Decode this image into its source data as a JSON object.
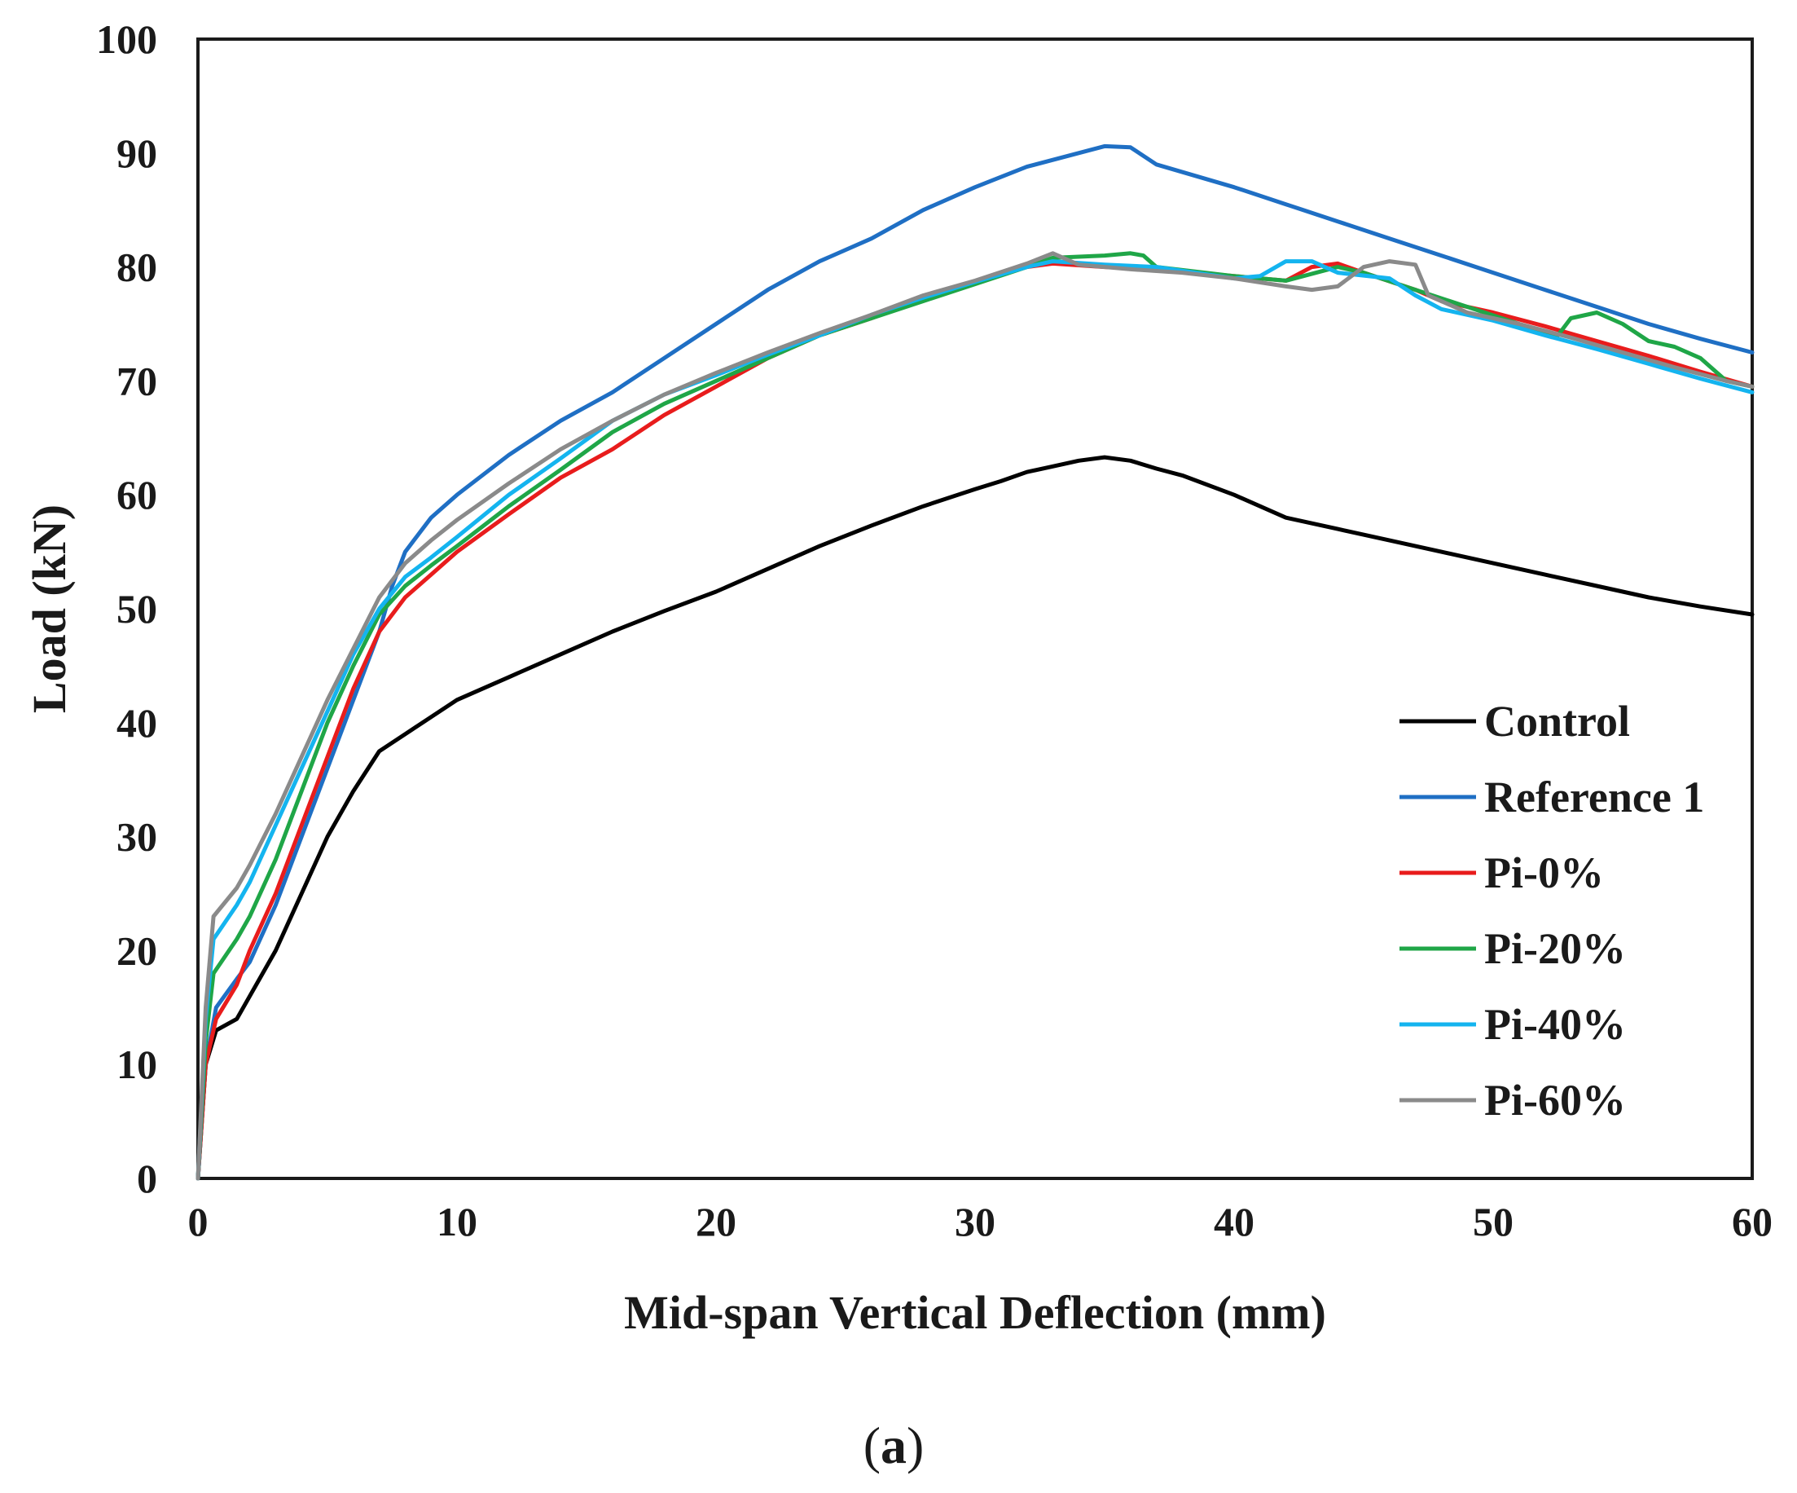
{
  "chart_data": {
    "type": "line",
    "title": "",
    "xlabel": "Mid-span Vertical Deflection (mm)",
    "ylabel": "Load (kN)",
    "xlim": [
      0,
      60
    ],
    "ylim": [
      0,
      100
    ],
    "xticks": [
      0,
      10,
      20,
      30,
      40,
      50,
      60
    ],
    "yticks": [
      0,
      10,
      20,
      30,
      40,
      50,
      60,
      70,
      80,
      90,
      100
    ],
    "grid": false,
    "legend_position": "bottom-right",
    "caption_prefix": "(",
    "caption_letter": "a",
    "caption_suffix": ")",
    "series": [
      {
        "name": "Control",
        "color": "#000000",
        "points": [
          [
            0,
            0
          ],
          [
            0.3,
            10
          ],
          [
            0.7,
            13
          ],
          [
            1.5,
            14
          ],
          [
            2,
            16
          ],
          [
            3,
            20
          ],
          [
            4,
            25
          ],
          [
            5,
            30
          ],
          [
            6,
            34
          ],
          [
            7,
            37.5
          ],
          [
            8,
            39
          ],
          [
            9,
            40.5
          ],
          [
            10,
            42
          ],
          [
            12,
            44
          ],
          [
            14,
            46
          ],
          [
            16,
            48
          ],
          [
            18,
            49.8
          ],
          [
            20,
            51.5
          ],
          [
            22,
            53.5
          ],
          [
            24,
            55.5
          ],
          [
            26,
            57.3
          ],
          [
            28,
            59
          ],
          [
            30,
            60.5
          ],
          [
            31,
            61.2
          ],
          [
            32,
            62
          ],
          [
            33,
            62.5
          ],
          [
            34,
            63
          ],
          [
            35,
            63.3
          ],
          [
            36,
            63
          ],
          [
            37,
            62.3
          ],
          [
            38,
            61.7
          ],
          [
            40,
            60
          ],
          [
            42,
            58
          ],
          [
            44,
            57
          ],
          [
            46,
            56
          ],
          [
            48,
            55
          ],
          [
            50,
            54
          ],
          [
            52,
            53
          ],
          [
            54,
            52
          ],
          [
            56,
            51
          ],
          [
            58,
            50.2
          ],
          [
            60,
            49.5
          ]
        ]
      },
      {
        "name": "Reference 1",
        "color": "#1f6fc4",
        "points": [
          [
            0,
            0
          ],
          [
            0.3,
            10
          ],
          [
            0.7,
            15
          ],
          [
            1.5,
            17.5
          ],
          [
            2,
            19
          ],
          [
            3,
            24
          ],
          [
            4,
            30
          ],
          [
            5,
            36
          ],
          [
            6,
            42
          ],
          [
            7,
            48
          ],
          [
            7.5,
            52
          ],
          [
            8,
            55
          ],
          [
            9,
            58
          ],
          [
            10,
            60
          ],
          [
            12,
            63.5
          ],
          [
            14,
            66.5
          ],
          [
            16,
            69
          ],
          [
            18,
            72
          ],
          [
            20,
            75
          ],
          [
            22,
            78
          ],
          [
            24,
            80.5
          ],
          [
            26,
            82.5
          ],
          [
            28,
            85
          ],
          [
            30,
            87
          ],
          [
            32,
            88.8
          ],
          [
            34,
            90
          ],
          [
            35,
            90.6
          ],
          [
            36,
            90.5
          ],
          [
            37,
            89
          ],
          [
            40,
            87
          ],
          [
            42,
            85.5
          ],
          [
            44,
            84
          ],
          [
            46,
            82.5
          ],
          [
            48,
            81
          ],
          [
            50,
            79.5
          ],
          [
            52,
            78
          ],
          [
            54,
            76.5
          ],
          [
            56,
            75
          ],
          [
            58,
            73.7
          ],
          [
            60,
            72.5
          ]
        ]
      },
      {
        "name": "Pi-0%",
        "color": "#e81c1c",
        "points": [
          [
            0,
            0
          ],
          [
            0.3,
            10
          ],
          [
            0.7,
            14
          ],
          [
            1.5,
            17
          ],
          [
            2,
            20
          ],
          [
            3,
            25
          ],
          [
            4,
            31
          ],
          [
            5,
            37
          ],
          [
            6,
            43
          ],
          [
            7,
            48
          ],
          [
            8,
            51
          ],
          [
            9,
            53
          ],
          [
            10,
            55
          ],
          [
            12,
            58.3
          ],
          [
            14,
            61.5
          ],
          [
            16,
            64
          ],
          [
            18,
            67
          ],
          [
            20,
            69.5
          ],
          [
            22,
            72
          ],
          [
            24,
            74
          ],
          [
            26,
            75.5
          ],
          [
            28,
            77.2
          ],
          [
            30,
            78.7
          ],
          [
            32,
            80
          ],
          [
            33,
            80.3
          ],
          [
            35,
            80
          ],
          [
            37,
            79.8
          ],
          [
            40,
            79.2
          ],
          [
            42,
            78.8
          ],
          [
            43,
            80
          ],
          [
            44,
            80.3
          ],
          [
            45,
            79.5
          ],
          [
            47,
            78
          ],
          [
            48,
            77
          ],
          [
            50,
            76
          ],
          [
            52,
            74.8
          ],
          [
            54,
            73.5
          ],
          [
            56,
            72.2
          ],
          [
            58,
            70.8
          ],
          [
            60,
            69.5
          ]
        ]
      },
      {
        "name": "Pi-20%",
        "color": "#1fa647",
        "points": [
          [
            0,
            0
          ],
          [
            0.3,
            12
          ],
          [
            0.6,
            18
          ],
          [
            1.5,
            21
          ],
          [
            2,
            23
          ],
          [
            3,
            28
          ],
          [
            4,
            34
          ],
          [
            5,
            40
          ],
          [
            6,
            45
          ],
          [
            7,
            49.5
          ],
          [
            8,
            52
          ],
          [
            9,
            53.8
          ],
          [
            10,
            55.5
          ],
          [
            12,
            59
          ],
          [
            14,
            62.2
          ],
          [
            16,
            65.5
          ],
          [
            18,
            68
          ],
          [
            20,
            70
          ],
          [
            22,
            72
          ],
          [
            24,
            74
          ],
          [
            26,
            75.5
          ],
          [
            28,
            77
          ],
          [
            30,
            78.5
          ],
          [
            32,
            80
          ],
          [
            33,
            80.8
          ],
          [
            35,
            81
          ],
          [
            36,
            81.2
          ],
          [
            36.5,
            81
          ],
          [
            37,
            80
          ],
          [
            40,
            79.2
          ],
          [
            42,
            78.8
          ],
          [
            44,
            80
          ],
          [
            45,
            79.5
          ],
          [
            47,
            78
          ],
          [
            49,
            76.5
          ],
          [
            51,
            75
          ],
          [
            52.5,
            74
          ],
          [
            53,
            75.5
          ],
          [
            54,
            76
          ],
          [
            55,
            75
          ],
          [
            56,
            73.5
          ],
          [
            57,
            73
          ],
          [
            58,
            72
          ],
          [
            59,
            70
          ],
          [
            60,
            69.5
          ]
        ]
      },
      {
        "name": "Pi-40%",
        "color": "#14b4ef",
        "points": [
          [
            0,
            0
          ],
          [
            0.3,
            14
          ],
          [
            0.6,
            21
          ],
          [
            1.5,
            24
          ],
          [
            2,
            26
          ],
          [
            3,
            31
          ],
          [
            4,
            36
          ],
          [
            5,
            41
          ],
          [
            6,
            46
          ],
          [
            7,
            50
          ],
          [
            8,
            52.8
          ],
          [
            9,
            54.5
          ],
          [
            10,
            56.3
          ],
          [
            12,
            60
          ],
          [
            14,
            63.2
          ],
          [
            16,
            66.5
          ],
          [
            18,
            68.8
          ],
          [
            20,
            70.5
          ],
          [
            22,
            72.3
          ],
          [
            24,
            74
          ],
          [
            26,
            75.8
          ],
          [
            28,
            77.3
          ],
          [
            30,
            78.7
          ],
          [
            32,
            80
          ],
          [
            33,
            80.5
          ],
          [
            35,
            80.2
          ],
          [
            37,
            80
          ],
          [
            40,
            79
          ],
          [
            41,
            79.2
          ],
          [
            42,
            80.5
          ],
          [
            43,
            80.5
          ],
          [
            44,
            79.5
          ],
          [
            46,
            79
          ],
          [
            47,
            77.5
          ],
          [
            48,
            76.3
          ],
          [
            50,
            75.3
          ],
          [
            52,
            74
          ],
          [
            54,
            72.8
          ],
          [
            56,
            71.5
          ],
          [
            58,
            70.2
          ],
          [
            60,
            69
          ]
        ]
      },
      {
        "name": "Pi-60%",
        "color": "#8a8a8a",
        "points": [
          [
            0,
            0
          ],
          [
            0.3,
            15
          ],
          [
            0.6,
            23
          ],
          [
            1.5,
            25.5
          ],
          [
            2,
            27.5
          ],
          [
            3,
            32
          ],
          [
            4,
            37
          ],
          [
            5,
            42
          ],
          [
            6,
            46.5
          ],
          [
            7,
            51
          ],
          [
            8,
            54
          ],
          [
            9,
            56
          ],
          [
            10,
            57.8
          ],
          [
            12,
            61
          ],
          [
            14,
            64
          ],
          [
            16,
            66.5
          ],
          [
            18,
            68.8
          ],
          [
            20,
            70.7
          ],
          [
            22,
            72.5
          ],
          [
            24,
            74.2
          ],
          [
            26,
            75.8
          ],
          [
            28,
            77.5
          ],
          [
            30,
            78.8
          ],
          [
            32,
            80.3
          ],
          [
            33,
            81.2
          ],
          [
            34,
            80.2
          ],
          [
            36,
            79.8
          ],
          [
            38,
            79.5
          ],
          [
            40,
            79
          ],
          [
            42,
            78.3
          ],
          [
            43,
            78
          ],
          [
            44,
            78.3
          ],
          [
            45,
            80
          ],
          [
            46,
            80.5
          ],
          [
            47,
            80.2
          ],
          [
            47.5,
            77.5
          ],
          [
            49,
            76
          ],
          [
            51,
            75
          ],
          [
            53,
            73.8
          ],
          [
            55,
            72.5
          ],
          [
            57,
            71.2
          ],
          [
            59,
            70
          ],
          [
            60,
            69.5
          ]
        ]
      }
    ]
  }
}
